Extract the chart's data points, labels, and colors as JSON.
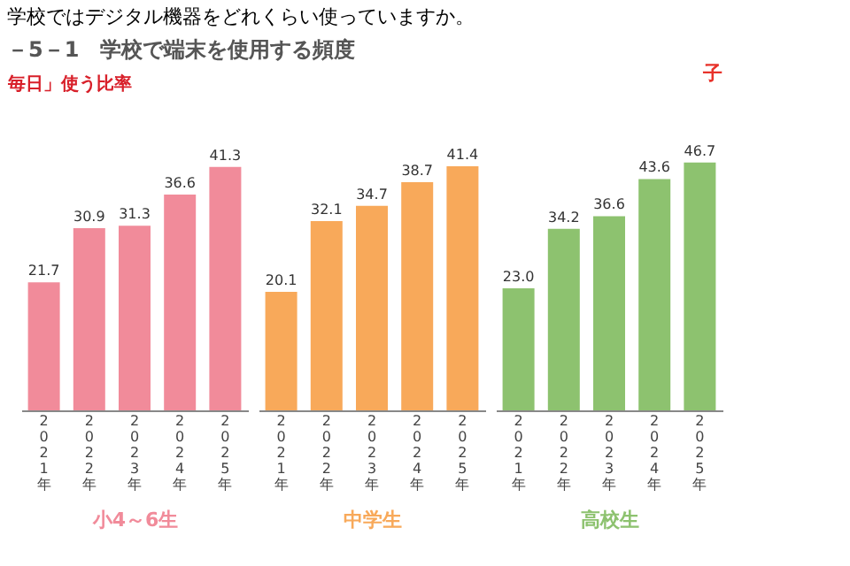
{
  "chart_data": [
    {
      "type": "bar",
      "title": "学校ではデジタル機器をどれくらい使っていますか。",
      "subtitle": "－5－1　学校で端末を使用する頻度",
      "ylabel": "毎日」使う比率",
      "xlabel": "小4～6生",
      "categories": [
        "2021年",
        "2022年",
        "2023年",
        "2024年",
        "2025年"
      ],
      "values": [
        21.7,
        30.9,
        31.3,
        36.6,
        41.3
      ],
      "color": "#f18b9a",
      "value_labels": [
        "21.7",
        "30.9",
        "31.3",
        "36.6",
        "41.3"
      ]
    },
    {
      "type": "bar",
      "xlabel": "中学生",
      "categories": [
        "2021年",
        "2022年",
        "2023年",
        "2024年",
        "2025年"
      ],
      "values": [
        20.1,
        32.1,
        34.7,
        38.7,
        41.4
      ],
      "color": "#f8a95a",
      "value_labels": [
        "20.1",
        "32.1",
        "34.7",
        "38.7",
        "41.4"
      ]
    },
    {
      "type": "bar",
      "xlabel": "高校生",
      "categories": [
        "2021年",
        "2022年",
        "2023年",
        "2024年",
        "2025年"
      ],
      "values": [
        23.0,
        34.2,
        36.6,
        43.6,
        46.7
      ],
      "color": "#8dc26f",
      "value_labels": [
        "23.0",
        "34.2",
        "36.6",
        "43.6",
        "46.7"
      ],
      "annotations": [
        "子"
      ]
    }
  ]
}
